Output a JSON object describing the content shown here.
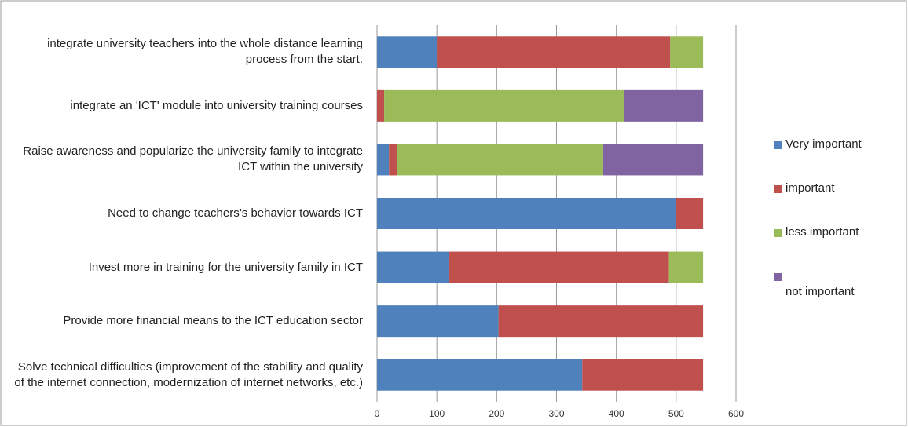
{
  "chart_data": {
    "type": "stacked-bar-horizontal",
    "categories": [
      "integrate university teachers into the whole distance learning process from the start.",
      "integrate an 'ICT' module into university training courses",
      "Raise awareness and popularize the university family to integrate ICT within the university",
      "Need to change teachers’s behavior towards ICT",
      "Invest more in training for the university family in ICT",
      "Provide more financial means to the ICT education sector",
      "Solve technical difficulties (improvement of the stability and quality of the internet connection, modernization of internet networks, etc.)"
    ],
    "series": [
      {
        "name": "Very important",
        "color": "#4f81bd",
        "values": [
          100,
          0,
          20,
          500,
          120,
          203,
          343
        ]
      },
      {
        "name": "important",
        "color": "#c0504d",
        "values": [
          390,
          12,
          14,
          45,
          368,
          342,
          202
        ]
      },
      {
        "name": "less  important",
        "color": "#9bbb59",
        "values": [
          55,
          401,
          344,
          0,
          57,
          0,
          0
        ]
      },
      {
        "name": "not important",
        "color": "#8064a2",
        "values": [
          0,
          132,
          167,
          0,
          0,
          0,
          0
        ]
      }
    ],
    "xlim": [
      0,
      600
    ],
    "xticks": [
      0,
      100,
      200,
      300,
      400,
      500,
      600
    ],
    "grid": true,
    "legend": "right"
  }
}
